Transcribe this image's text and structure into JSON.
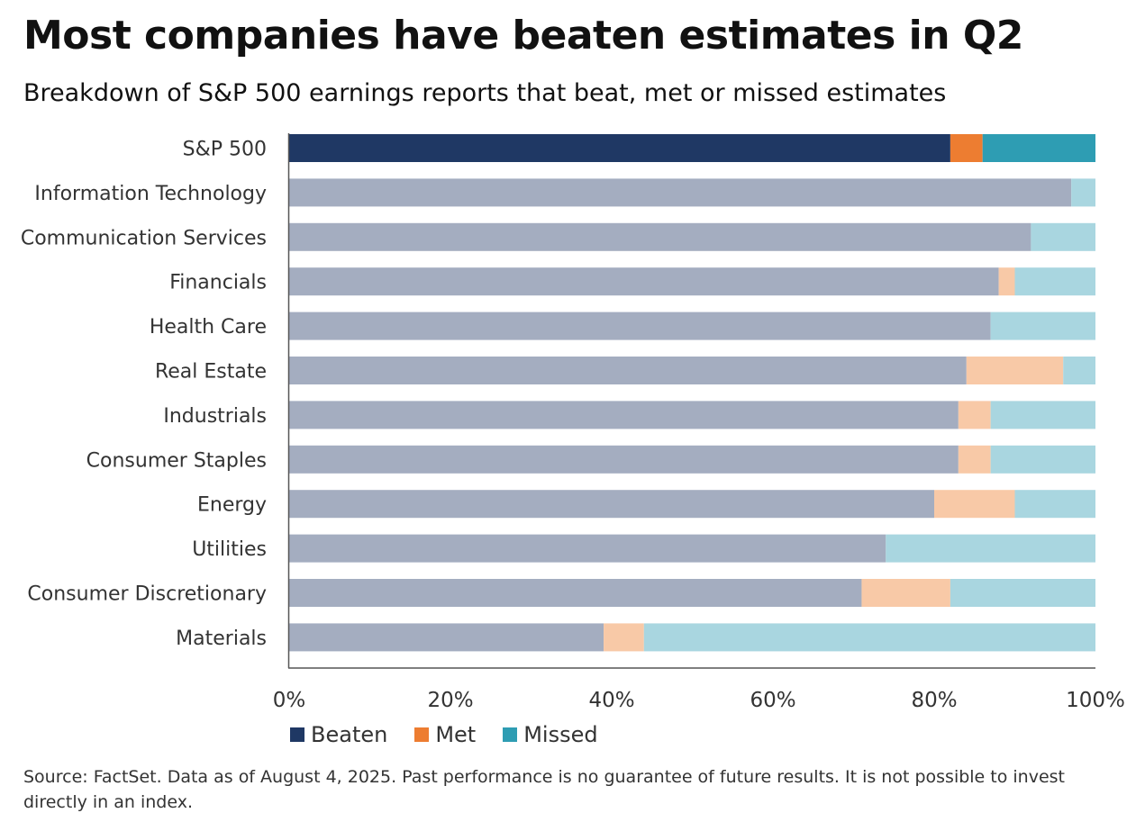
{
  "title": "Most companies have beaten estimates in Q2",
  "subtitle": "Breakdown of S&P 500 earnings reports that beat, met or missed estimates",
  "source": "Source: FactSet. Data as of August 4, 2025. Past performance is no guarantee of future results. It is not possible to invest directly in an index.",
  "chart_data": {
    "type": "bar",
    "orientation": "horizontal",
    "stacked": true,
    "categories": [
      "S&P 500",
      "Information Technology",
      "Communication Services",
      "Financials",
      "Health Care",
      "Real Estate",
      "Industrials",
      "Consumer Staples",
      "Energy",
      "Utilities",
      "Consumer Discretionary",
      "Materials"
    ],
    "series": [
      {
        "name": "Beaten",
        "values": [
          82,
          97,
          92,
          88,
          87,
          84,
          83,
          83,
          80,
          74,
          71,
          39
        ]
      },
      {
        "name": "Met",
        "values": [
          4,
          0,
          0,
          2,
          0,
          12,
          4,
          4,
          10,
          0,
          11,
          5
        ]
      },
      {
        "name": "Missed",
        "values": [
          14,
          3,
          8,
          10,
          13,
          4,
          13,
          13,
          10,
          26,
          18,
          56
        ]
      }
    ],
    "xlim": [
      0,
      100
    ],
    "x_ticks": [
      "0%",
      "20%",
      "40%",
      "60%",
      "80%",
      "100%"
    ],
    "grid": false,
    "legend_position": "bottom-left",
    "colors": {
      "highlight": {
        "Beaten": "#1f3864",
        "Met": "#ed7d31",
        "Missed": "#2e9db3"
      },
      "muted": {
        "Beaten": "#a4adc0",
        "Met": "#f8c9a7",
        "Missed": "#a9d6e0"
      }
    },
    "highlighted_category": "S&P 500"
  }
}
